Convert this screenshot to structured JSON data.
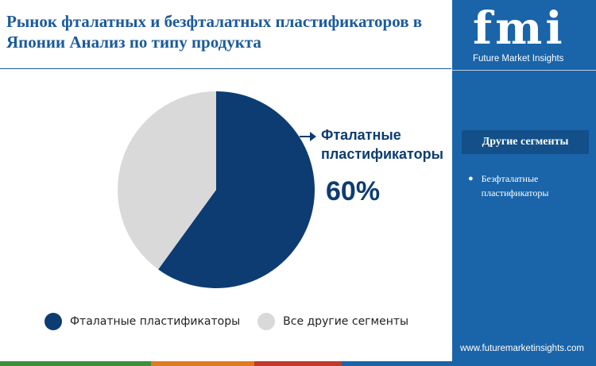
{
  "title": "Рынок фталатных и безфталатных пластификаторов в Японии Анализ по типу продукта",
  "chart_data": {
    "type": "pie",
    "slices": [
      {
        "label": "Фталатные пластификаторы",
        "value": 60,
        "color": "#0d3c73"
      },
      {
        "label": "Все другие сегменты",
        "value": 40,
        "color": "#d9d9d9"
      }
    ],
    "callout": {
      "label": "Фталатные пластификаторы",
      "value": "60%"
    },
    "legend_position": "bottom"
  },
  "sidebar": {
    "logo_letters": "fmi",
    "logo_caption": "Future Market Insights",
    "segments_title": "Другие сегменты",
    "segments": [
      "Безфталатные пластификаторы"
    ],
    "url": "www.futuremarketinsights.com",
    "background": "#1a64a9"
  },
  "bottom_bar_colors": [
    "#3a8f3a",
    "#e07a1f",
    "#c0392b",
    "#1a64a9"
  ]
}
